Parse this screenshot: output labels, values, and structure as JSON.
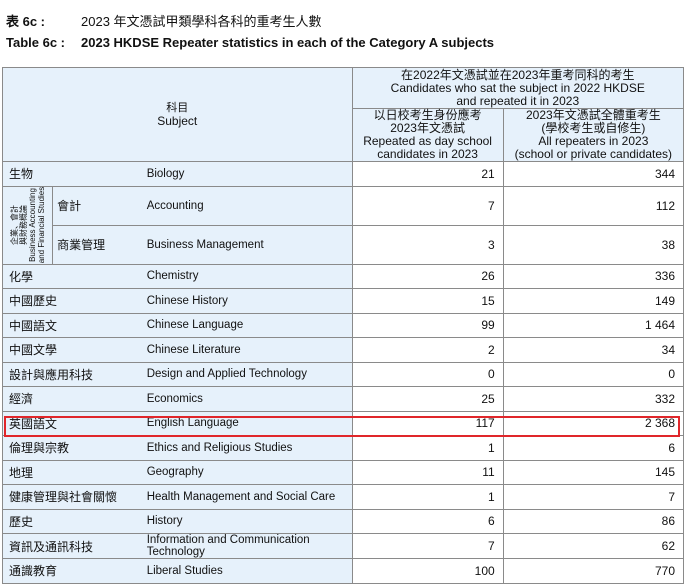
{
  "header": {
    "zh_label": "表 6c :",
    "zh_title": "2023 年文憑試甲類學科各科的重考生人數",
    "en_label": "Table 6c :",
    "en_title": "2023 HKDSE Repeater statistics in each of the Category A subjects"
  },
  "table": {
    "subject_header_zh": "科目",
    "subject_header_en": "Subject",
    "group_header": {
      "zh": "在2022年文憑試並在2023年重考同科的考生",
      "en1": "Candidates who sat the subject in 2022 HKDSE",
      "en2": "and repeated it in 2023"
    },
    "col1": {
      "zh1": "以日校考生身份應考",
      "zh2": "2023年文憑試",
      "en1": "Repeated as day school",
      "en2": "candidates in 2023"
    },
    "col2": {
      "zh1": "2023年文憑試全體重考生",
      "zh2": "(學校考生或自修生)",
      "en1": "All repeaters in 2023",
      "en2": "(school or private candidates)"
    },
    "baf_group": {
      "zh1": "企業、會計",
      "zh2": "與財務概論",
      "en1": "Business Accounting",
      "en2": "and Financial Studies"
    },
    "rows": [
      {
        "zh": "生物",
        "en": "Biology",
        "day": "21",
        "all": "344"
      },
      {
        "zh": "會計",
        "en": "Accounting",
        "day": "7",
        "all": "112"
      },
      {
        "zh": "商業管理",
        "en": "Business Management",
        "day": "3",
        "all": "38"
      },
      {
        "zh": "化學",
        "en": "Chemistry",
        "day": "26",
        "all": "336"
      },
      {
        "zh": "中國歷史",
        "en": "Chinese History",
        "day": "15",
        "all": "149"
      },
      {
        "zh": "中國語文",
        "en": "Chinese Language",
        "day": "99",
        "all": "1 464"
      },
      {
        "zh": "中國文學",
        "en": "Chinese Literature",
        "day": "2",
        "all": "34"
      },
      {
        "zh": "設計與應用科技",
        "en": "Design and Applied Technology",
        "day": "0",
        "all": "0"
      },
      {
        "zh": "經濟",
        "en": "Economics",
        "day": "25",
        "all": "332"
      },
      {
        "zh": "英國語文",
        "en": "English Language",
        "day": "117",
        "all": "2 368"
      },
      {
        "zh": "倫理與宗教",
        "en": "Ethics and Religious Studies",
        "day": "1",
        "all": "6"
      },
      {
        "zh": "地理",
        "en": "Geography",
        "day": "11",
        "all": "145"
      },
      {
        "zh": "健康管理與社會關懷",
        "en": "Health Management and Social Care",
        "day": "1",
        "all": "7"
      },
      {
        "zh": "歷史",
        "en": "History",
        "day": "6",
        "all": "86"
      },
      {
        "zh": "資訊及通訊科技",
        "en": "Information and Communication Technology",
        "day": "7",
        "all": "62"
      },
      {
        "zh": "通識教育",
        "en": "Liberal Studies",
        "day": "100",
        "all": "770"
      }
    ]
  }
}
